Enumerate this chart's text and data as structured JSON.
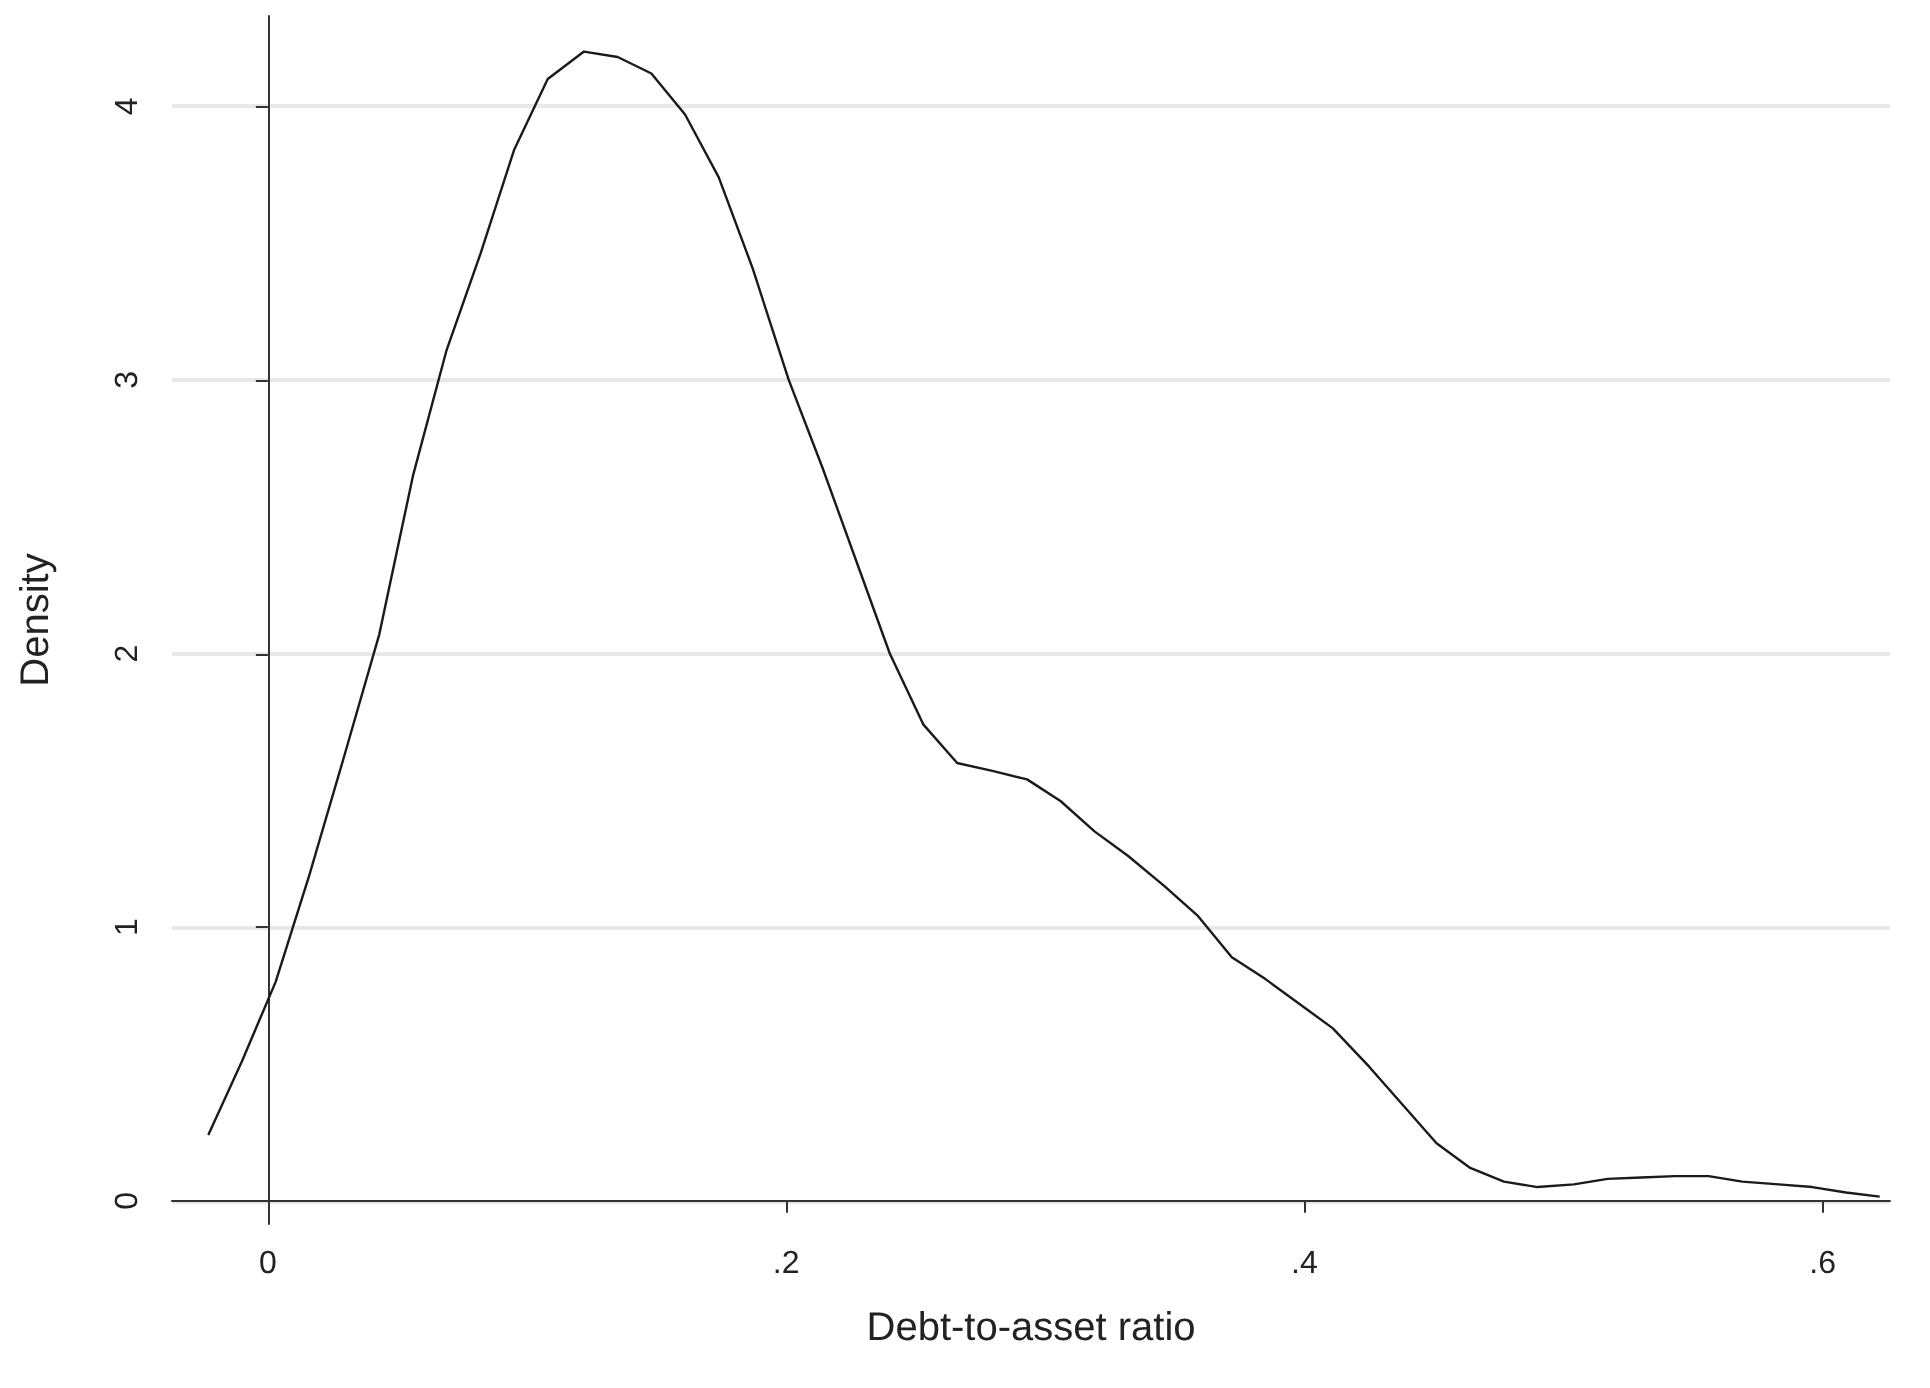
{
  "chart_data": {
    "type": "line",
    "xlabel": "Debt-to-asset ratio",
    "ylabel": "Density",
    "x": [
      -0.023,
      -0.01,
      0.003,
      0.016,
      0.029,
      0.043,
      0.056,
      0.069,
      0.082,
      0.095,
      0.108,
      0.122,
      0.135,
      0.148,
      0.161,
      0.174,
      0.187,
      0.201,
      0.214,
      0.227,
      0.24,
      0.253,
      0.266,
      0.28,
      0.293,
      0.306,
      0.319,
      0.332,
      0.346,
      0.359,
      0.372,
      0.385,
      0.398,
      0.411,
      0.425,
      0.438,
      0.451,
      0.464,
      0.477,
      0.49,
      0.504,
      0.517,
      0.53,
      0.543,
      0.556,
      0.569,
      0.583,
      0.596,
      0.609,
      0.622
    ],
    "series": [
      {
        "color": "#1a1a1a",
        "values": [
          0.24,
          0.51,
          0.8,
          1.19,
          1.61,
          2.07,
          2.65,
          3.11,
          3.46,
          3.84,
          4.1,
          4.2,
          4.18,
          4.12,
          3.97,
          3.74,
          3.41,
          3.0,
          2.68,
          2.34,
          2.0,
          1.74,
          1.6,
          1.57,
          1.54,
          1.46,
          1.35,
          1.26,
          1.15,
          1.04,
          0.89,
          0.81,
          0.72,
          0.63,
          0.49,
          0.35,
          0.21,
          0.12,
          0.07,
          0.05,
          0.06,
          0.08,
          0.085,
          0.09,
          0.09,
          0.07,
          0.06,
          0.05,
          0.03,
          0.015
        ]
      }
    ],
    "xlim": [
      -0.037,
      0.626
    ],
    "ylim": [
      -0.085,
      4.33
    ],
    "xticks": [
      0,
      {
        "value": 0.2,
        "label": ".2"
      },
      {
        "value": 0.4,
        "label": ".4"
      },
      {
        "value": 0.6,
        "label": ".6"
      }
    ],
    "yticks": [
      0,
      1,
      2,
      3,
      4
    ],
    "grid": "y"
  }
}
